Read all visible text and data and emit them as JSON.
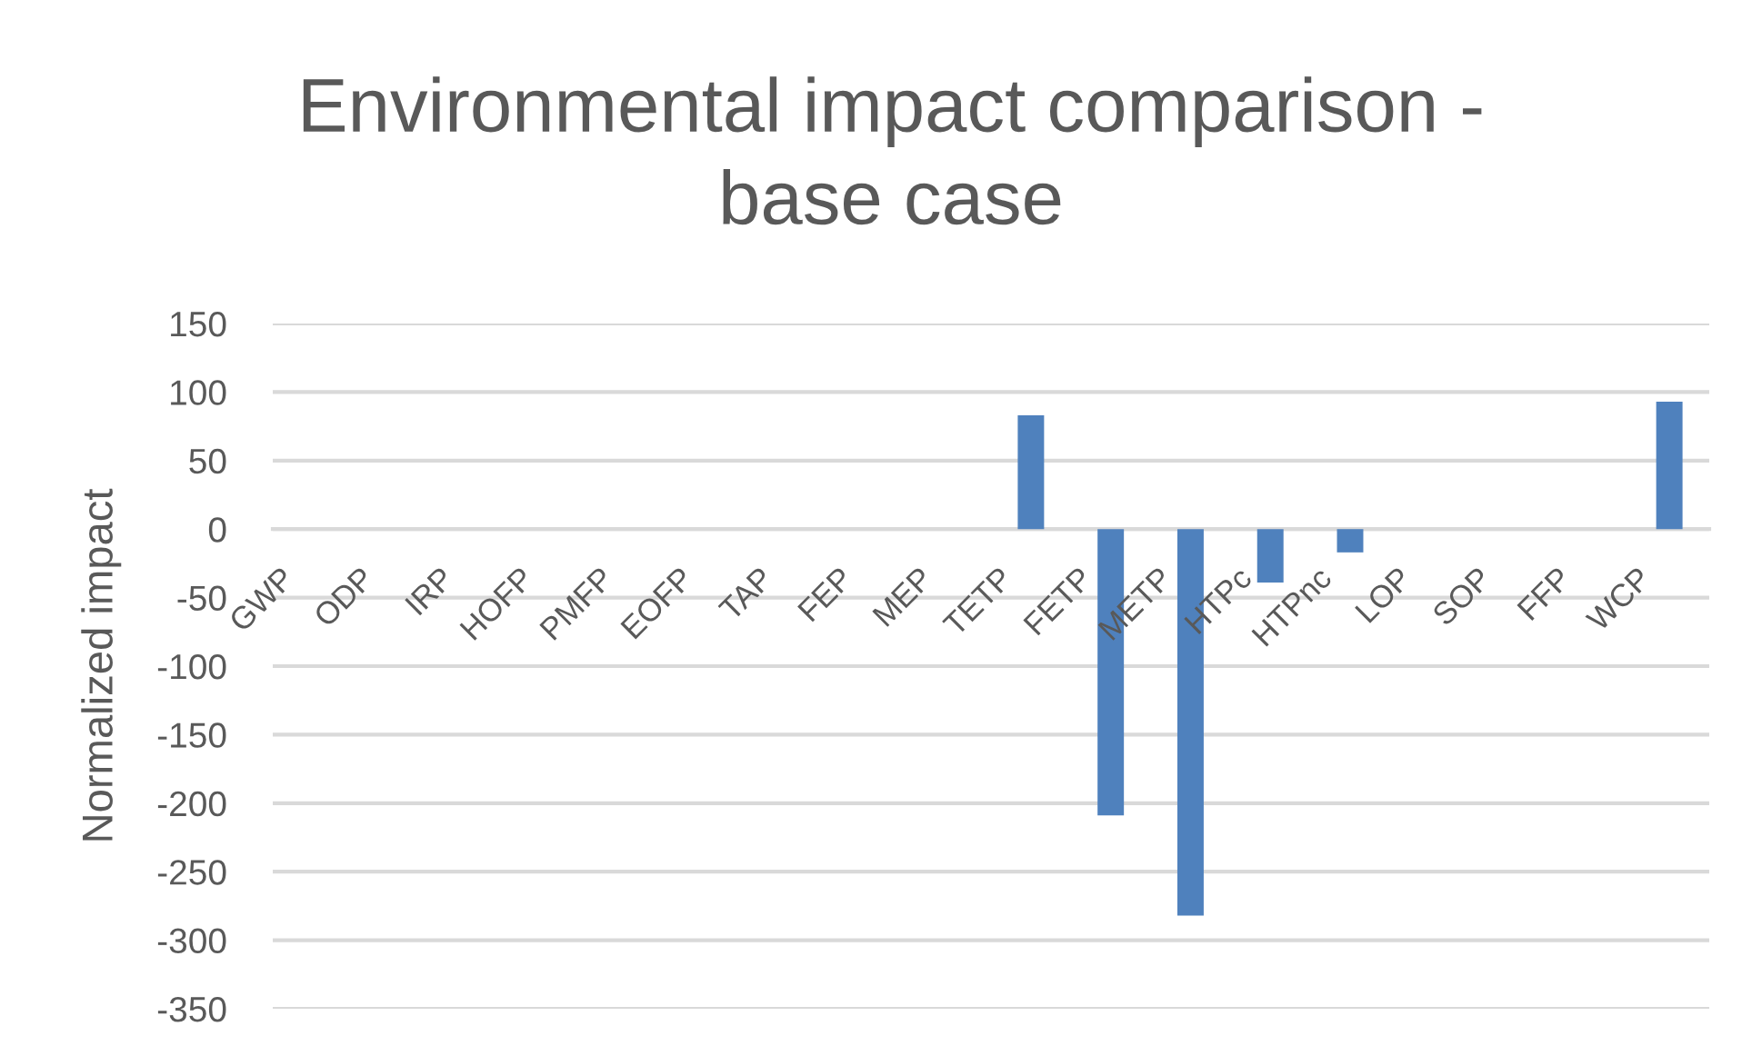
{
  "chart_data": {
    "type": "bar",
    "title": "Environmental impact comparison -\nbase case",
    "ylabel": "Normalized impact",
    "categories": [
      "GWP",
      "ODP",
      "IRP",
      "HOFP",
      "PMFP",
      "EOFP",
      "TAP",
      "FEP",
      "MEP",
      "TETP",
      "FETP",
      "METP",
      "HTPc",
      "HTPnc",
      "LOP",
      "SOP",
      "FFP",
      "WCP"
    ],
    "values": [
      0,
      0,
      0,
      0,
      0,
      0,
      0,
      0,
      0,
      83,
      -209,
      -282,
      -39,
      -17,
      0,
      0,
      0,
      93
    ],
    "color": "#4f81bd",
    "ylim": [
      -350,
      150
    ],
    "yticks": [
      -350,
      -300,
      -250,
      -200,
      -150,
      -100,
      -50,
      0,
      50,
      100,
      150
    ],
    "grid": "y",
    "legend": false
  }
}
